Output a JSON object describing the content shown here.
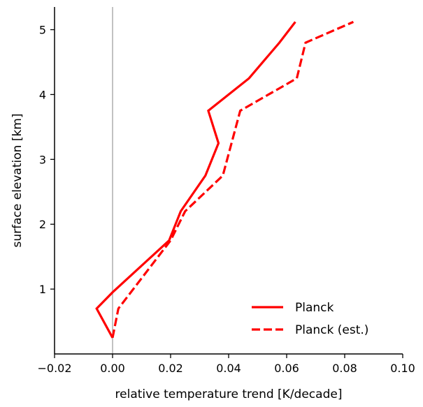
{
  "chart_data": {
    "type": "line",
    "xlabel": "relative temperature trend [K/decade]",
    "ylabel": "surface elevation [km]",
    "xlim": [
      -0.02,
      0.1
    ],
    "ylim": [
      0.0,
      5.35
    ],
    "xticks": [
      -0.02,
      0.0,
      0.02,
      0.04,
      0.06,
      0.08,
      0.1
    ],
    "xtick_labels": [
      "−0.02",
      "0.00",
      "0.02",
      "0.04",
      "0.06",
      "0.08",
      "0.10"
    ],
    "yticks": [
      1,
      2,
      3,
      4,
      5
    ],
    "ytick_labels": [
      "1",
      "2",
      "3",
      "4",
      "5"
    ],
    "reference_line_x": 0.0,
    "grid": false,
    "legend_position": "bottom-right",
    "series": [
      {
        "name": "Planck",
        "style": "solid",
        "color": "#ff0000",
        "x": [
          0.0,
          -0.0055,
          0.0,
          0.0195,
          0.0235,
          0.032,
          0.0365,
          0.033,
          0.047,
          0.0575,
          0.063
        ],
        "y": [
          0.25,
          0.7,
          0.95,
          1.75,
          2.2,
          2.75,
          3.25,
          3.75,
          4.25,
          4.8,
          5.12
        ]
      },
      {
        "name": "Planck (est.)",
        "style": "dashed",
        "color": "#ff0000",
        "x": [
          0.0,
          0.002,
          0.02,
          0.025,
          0.038,
          0.044,
          0.0635,
          0.0665,
          0.083
        ],
        "y": [
          0.25,
          0.7,
          1.75,
          2.2,
          2.75,
          3.75,
          4.25,
          4.8,
          5.12
        ]
      }
    ]
  }
}
